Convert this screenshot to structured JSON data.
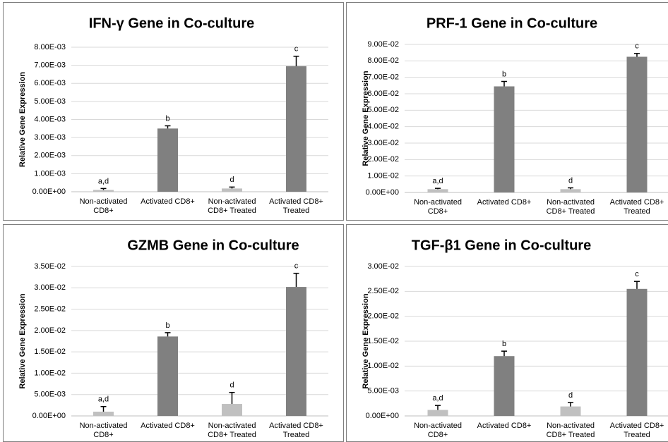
{
  "chart_data": [
    {
      "type": "bar",
      "title": "IFN-γ Gene in Co-culture",
      "ylabel": "Relative Gene Expression",
      "categories": [
        "Non-activated CD8+",
        "Activated CD8+",
        "Non-activated CD8+ Treated",
        "Activated CD8+ Treated"
      ],
      "values": [
        0.0001,
        0.0035,
        0.00018,
        0.00695
      ],
      "errors": [
        8e-05,
        0.00015,
        8e-05,
        0.00055
      ],
      "annotations": [
        "a,d",
        "b",
        "d",
        "c"
      ],
      "colors": [
        "#c0c0c0",
        "#808080",
        "#c0c0c0",
        "#808080"
      ],
      "ylim": [
        0,
        0.008
      ],
      "grid": true,
      "yticks": [
        {
          "value": 0,
          "label": "0.00E+00"
        },
        {
          "value": 0.001,
          "label": "1.00E-03"
        },
        {
          "value": 0.002,
          "label": "2.00E-03"
        },
        {
          "value": 0.003,
          "label": "3.00E-03"
        },
        {
          "value": 0.004,
          "label": "4.00E-03"
        },
        {
          "value": 0.005,
          "label": "5.00E-03"
        },
        {
          "value": 0.006,
          "label": "6.00E-03"
        },
        {
          "value": 0.007,
          "label": "7.00E-03"
        },
        {
          "value": 0.008,
          "label": "8.00E-03"
        }
      ]
    },
    {
      "type": "bar",
      "title": "PRF-1 Gene in Co-culture",
      "ylabel": "Relative Gene Expression",
      "categories": [
        "Non-activated CD8+",
        "Activated CD8+",
        "Non-activated CD8+ Treated",
        "Activated CD8+ Treated"
      ],
      "values": [
        0.002,
        0.0645,
        0.002,
        0.0825
      ],
      "errors": [
        0.0005,
        0.003,
        0.0008,
        0.002
      ],
      "annotations": [
        "a,d",
        "b",
        "d",
        "c"
      ],
      "colors": [
        "#c0c0c0",
        "#808080",
        "#c0c0c0",
        "#808080"
      ],
      "ylim": [
        0,
        0.09
      ],
      "grid": true,
      "yticks": [
        {
          "value": 0,
          "label": "0.00E+00"
        },
        {
          "value": 0.01,
          "label": "1.00E-02"
        },
        {
          "value": 0.02,
          "label": "2.00E-02"
        },
        {
          "value": 0.03,
          "label": "3.00E-02"
        },
        {
          "value": 0.04,
          "label": "4.00E-02"
        },
        {
          "value": 0.05,
          "label": "5.00E-02"
        },
        {
          "value": 0.06,
          "label": "6.00E-02"
        },
        {
          "value": 0.07,
          "label": "7.00E-02"
        },
        {
          "value": 0.08,
          "label": "8.00E-02"
        },
        {
          "value": 0.09,
          "label": "9.00E-02"
        }
      ]
    },
    {
      "type": "bar",
      "title": "GZMB Gene in Co-culture",
      "ylabel": "Relative Gene Expression",
      "categories": [
        "Non-activated CD8+",
        "Activated CD8+",
        "Non-activated CD8+ Treated",
        "Activated CD8+ Treated"
      ],
      "values": [
        0.001,
        0.0186,
        0.0028,
        0.0302
      ],
      "errors": [
        0.0012,
        0.0009,
        0.0027,
        0.0032
      ],
      "annotations": [
        "a,d",
        "b",
        "d",
        "c"
      ],
      "colors": [
        "#c0c0c0",
        "#808080",
        "#c0c0c0",
        "#808080"
      ],
      "ylim": [
        0,
        0.035
      ],
      "grid": true,
      "yticks": [
        {
          "value": 0,
          "label": "0.00E+00"
        },
        {
          "value": 0.005,
          "label": "5.00E-03"
        },
        {
          "value": 0.01,
          "label": "1.00E-02"
        },
        {
          "value": 0.015,
          "label": "1.50E-02"
        },
        {
          "value": 0.02,
          "label": "2.00E-02"
        },
        {
          "value": 0.025,
          "label": "2.50E-02"
        },
        {
          "value": 0.03,
          "label": "3.00E-02"
        },
        {
          "value": 0.035,
          "label": "3.50E-02"
        }
      ]
    },
    {
      "type": "bar",
      "title": "TGF-β1 Gene in Co-culture",
      "ylabel": "Relative Gene Expression",
      "categories": [
        "Non-activated CD8+",
        "Activated CD8+",
        "Non-activated CD8+ Treated",
        "Activated CD8+ Treated"
      ],
      "values": [
        0.0012,
        0.012,
        0.0019,
        0.0255
      ],
      "errors": [
        0.0009,
        0.001,
        0.0008,
        0.0015
      ],
      "annotations": [
        "a,d",
        "b",
        "d",
        "c"
      ],
      "colors": [
        "#c0c0c0",
        "#808080",
        "#c0c0c0",
        "#808080"
      ],
      "ylim": [
        0,
        0.03
      ],
      "grid": true,
      "yticks": [
        {
          "value": 0,
          "label": "0.00E+00"
        },
        {
          "value": 0.005,
          "label": "5.00E-03"
        },
        {
          "value": 0.01,
          "label": "1.00E-02"
        },
        {
          "value": 0.015,
          "label": "1.50E-02"
        },
        {
          "value": 0.02,
          "label": "2.00E-02"
        },
        {
          "value": 0.025,
          "label": "2.50E-02"
        },
        {
          "value": 0.03,
          "label": "3.00E-02"
        }
      ]
    }
  ]
}
